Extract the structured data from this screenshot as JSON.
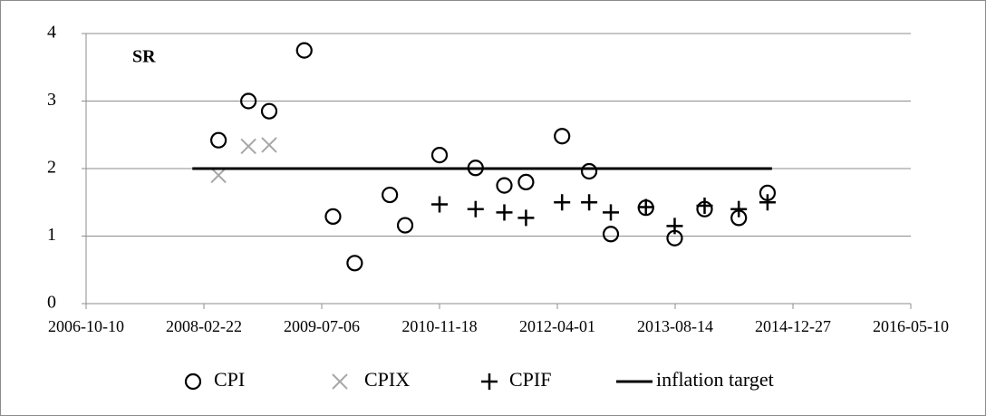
{
  "chart_data": {
    "type": "scatter",
    "title": "SR",
    "xlim": [
      "2006-10-10",
      "2016-05-10"
    ],
    "xticks": [
      "2006-10-10",
      "2008-02-22",
      "2009-07-06",
      "2010-11-18",
      "2012-04-01",
      "2013-08-14",
      "2014-12-27",
      "2016-05-10"
    ],
    "ylim": [
      0,
      4
    ],
    "yticks": [
      0,
      1,
      2,
      3,
      4
    ],
    "grid": true,
    "legend": "bottom",
    "series": [
      {
        "name": "CPI",
        "color": "#000000",
        "marker": "circle",
        "x": [
          "2008-04-24",
          "2008-08-29",
          "2008-11-25",
          "2009-04-23",
          "2009-08-23",
          "2009-11-23",
          "2010-04-21",
          "2010-06-25",
          "2010-11-18",
          "2011-04-20",
          "2011-08-20",
          "2011-11-20",
          "2012-04-21",
          "2012-08-14",
          "2012-11-14",
          "2013-04-12",
          "2013-08-12",
          "2013-12-17",
          "2014-05-11",
          "2014-09-10"
        ],
        "values": [
          2.42,
          3.0,
          2.85,
          3.75,
          1.29,
          0.6,
          1.61,
          1.16,
          2.2,
          2.01,
          1.75,
          1.8,
          2.48,
          1.96,
          1.03,
          1.42,
          0.97,
          1.4,
          1.27,
          1.64
        ]
      },
      {
        "name": "CPIX",
        "color": "#a6a6a6",
        "marker": "x",
        "x": [
          "2008-04-24",
          "2008-08-29",
          "2008-11-25"
        ],
        "values": [
          1.9,
          2.33,
          2.35
        ]
      },
      {
        "name": "CPIF",
        "color": "#000000",
        "marker": "plus",
        "x": [
          "2010-11-18",
          "2011-04-20",
          "2011-08-20",
          "2011-11-20",
          "2012-04-21",
          "2012-08-14",
          "2012-11-14",
          "2013-04-12",
          "2013-08-12",
          "2013-12-17",
          "2014-05-11",
          "2014-09-10"
        ],
        "values": [
          1.47,
          1.4,
          1.35,
          1.27,
          1.5,
          1.5,
          1.35,
          1.43,
          1.15,
          1.45,
          1.4,
          1.5
        ]
      },
      {
        "name": "inflation target",
        "color": "#000000",
        "marker": "line",
        "x": [
          "2008-01-04",
          "2014-09-29"
        ],
        "values": [
          2,
          2
        ]
      }
    ]
  }
}
